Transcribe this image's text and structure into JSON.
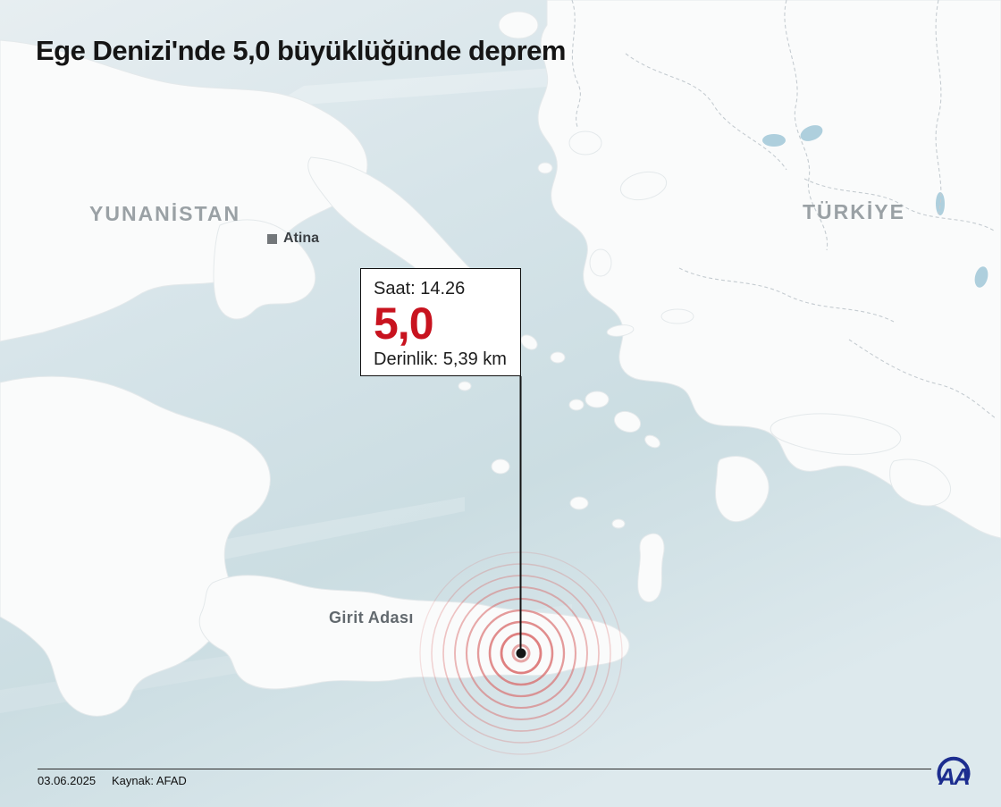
{
  "header": {
    "title": "Ege Denizi'nde 5,0 büyüklüğünde deprem"
  },
  "map": {
    "country_labels": [
      {
        "id": "greece",
        "label": "YUNANİSTAN"
      },
      {
        "id": "turkey",
        "label": "TÜRKİYE"
      }
    ],
    "city": {
      "label": "Atina",
      "marker": "square-marker-icon"
    },
    "island": {
      "label": "Girit Adası"
    }
  },
  "infobox": {
    "time": "Saat: 14.26",
    "magnitude": "5,0",
    "depth": "Derinlik: 5,39 km"
  },
  "epicenter": {
    "ring_count": 9,
    "ring_color": "#d96a6a",
    "inner_ring_color": "#e5a0a0",
    "dot_color": "#161616"
  },
  "footer": {
    "date": "03.06.2025",
    "source": "Kaynak: AFAD",
    "logo_text": "AA"
  },
  "colors": {
    "magnitude_red": "#c8131f",
    "sea": "#d3e1e7",
    "land": "#fafbfb",
    "country_label_gray": "#9aa1a5",
    "logo_blue": "#1c2d8f",
    "title_black": "#151515"
  }
}
